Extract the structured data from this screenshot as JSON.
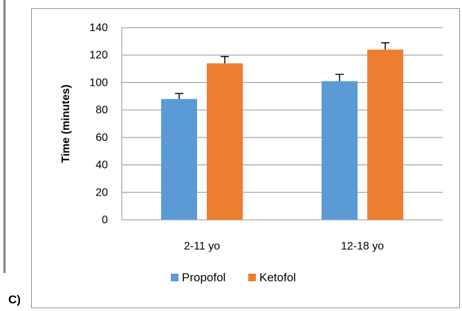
{
  "panel_label": "C)",
  "chart_data": {
    "type": "bar",
    "title": "",
    "xlabel": "",
    "ylabel": "Time (minutes)",
    "ylim": [
      0,
      140
    ],
    "yticks": [
      0,
      20,
      40,
      60,
      80,
      100,
      120,
      140
    ],
    "categories": [
      "2-11 yo",
      "12-18 yo"
    ],
    "series": [
      {
        "name": "Propofol",
        "color": "#5b9bd5",
        "values": [
          88,
          101
        ],
        "errors": [
          4,
          5
        ]
      },
      {
        "name": "Ketofol",
        "color": "#ed7d31",
        "values": [
          114,
          124
        ],
        "errors": [
          5,
          5
        ]
      }
    ],
    "grid": true,
    "legend": "bottom"
  }
}
